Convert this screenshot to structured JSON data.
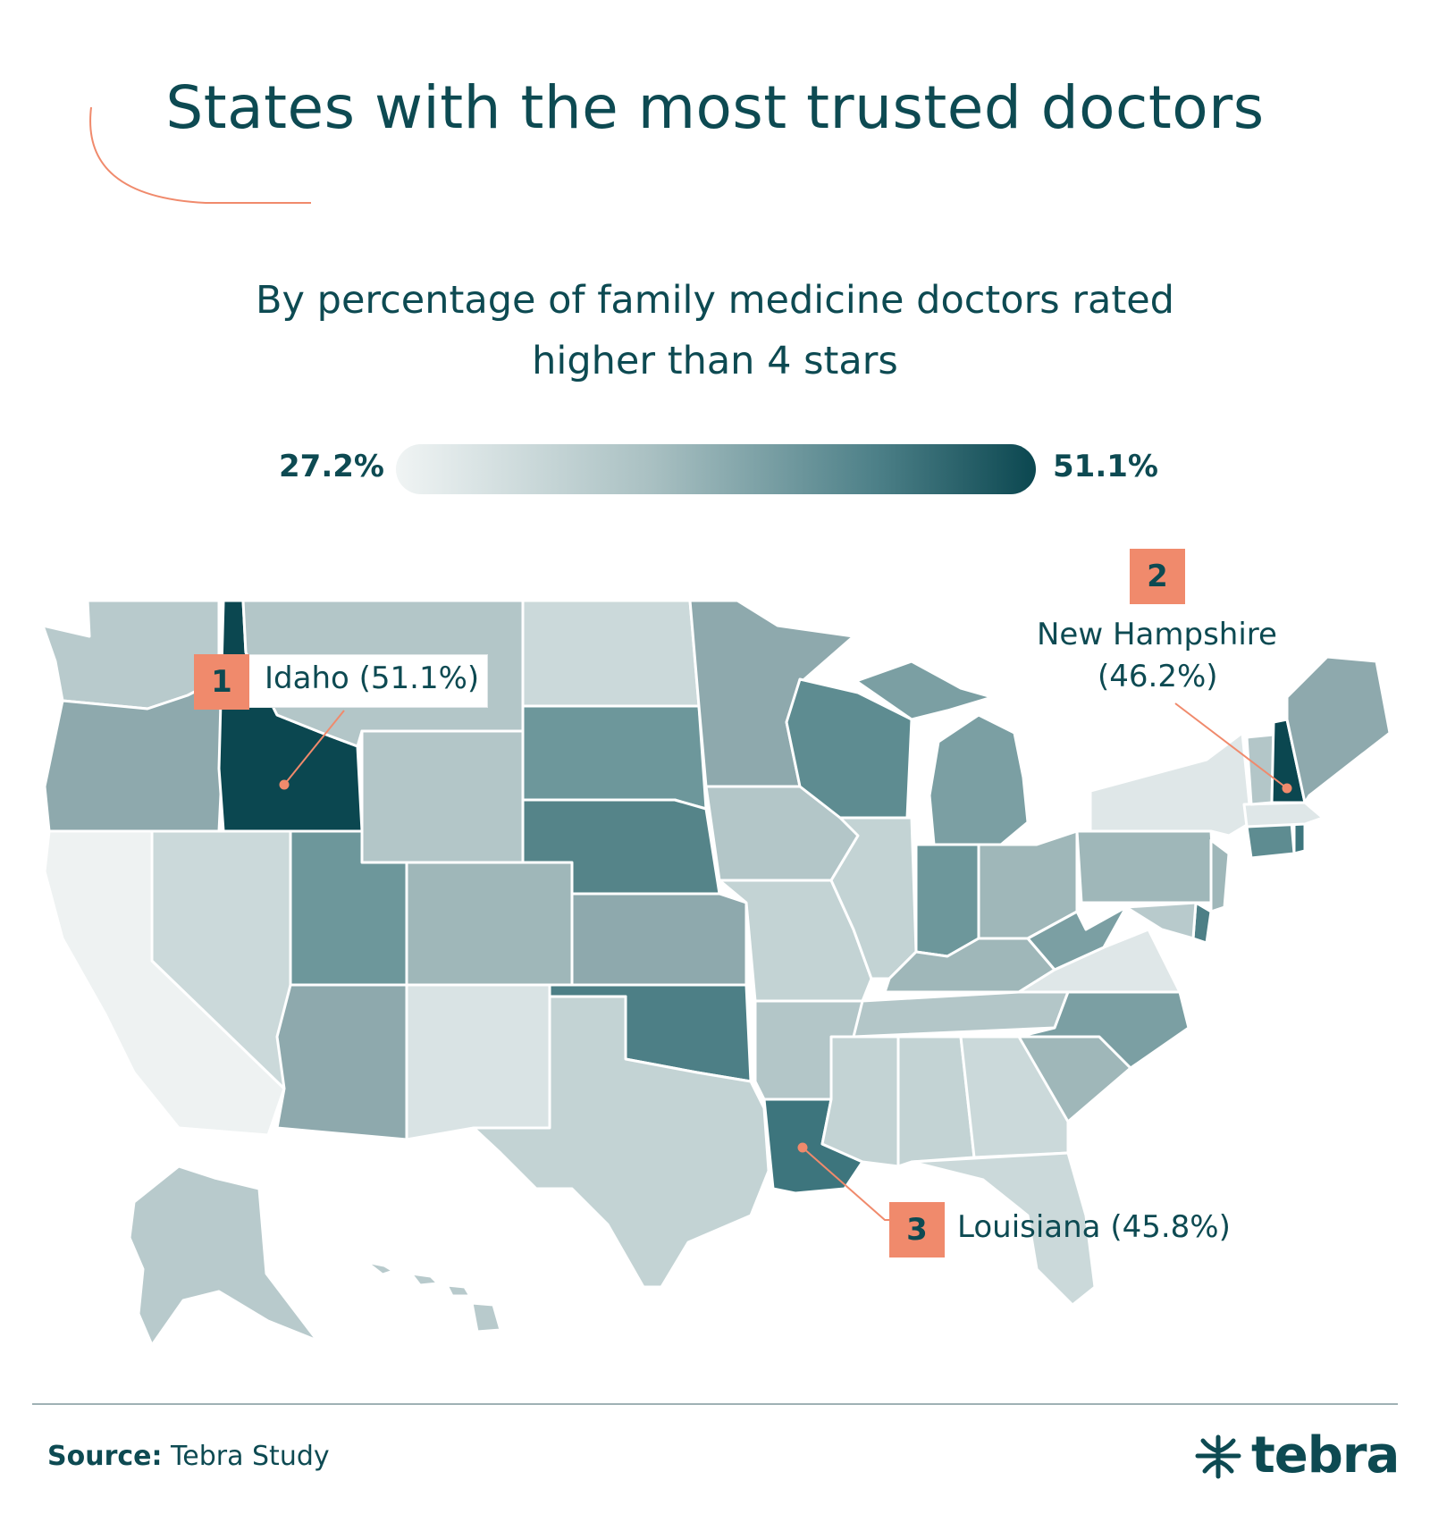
{
  "title": "States with the most trusted doctors",
  "subtitle_line1": "By percentage of family medicine doctors rated",
  "subtitle_line2": "higher than 4 stars",
  "legend": {
    "min_label": "27.2%",
    "max_label": "51.1%",
    "min_value": 27.2,
    "max_value": 51.1,
    "color_low": "#f0f4f4",
    "color_high": "#0b4750"
  },
  "callouts": [
    {
      "rank": "1",
      "label": "Idaho (51.1%)",
      "state": "Idaho",
      "value": 51.1
    },
    {
      "rank": "2",
      "label_line1": "New Hampshire",
      "label_line2": "(46.2%)",
      "state": "New Hampshire",
      "value": 46.2
    },
    {
      "rank": "3",
      "label": "Louisiana (45.8%)",
      "state": "Louisiana",
      "value": 45.8
    }
  ],
  "colors": {
    "text": "#0d4a52",
    "badge": "#f08a6c",
    "accent_line": "#f08a6c"
  },
  "source": {
    "prefix": "Source:",
    "text": " Tebra Study"
  },
  "logo": {
    "text": "tebra",
    "icon": "tebra-sprout-icon"
  }
}
